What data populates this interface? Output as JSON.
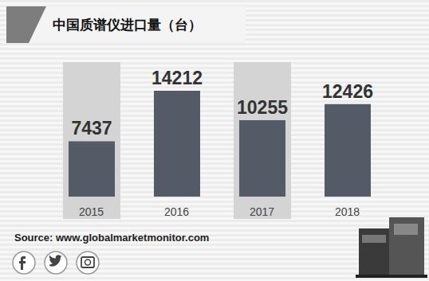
{
  "chart_data": {
    "type": "bar",
    "title": "中国质谱仪进口量（台）",
    "categories": [
      "2015",
      "2016",
      "2017",
      "2018"
    ],
    "values": [
      7437,
      14212,
      10255,
      12426
    ],
    "color": "#555b66",
    "data_labels": true,
    "tick_labels": "x",
    "grid": false
  },
  "source": "Source: www.globalmarketmonitor.com"
}
